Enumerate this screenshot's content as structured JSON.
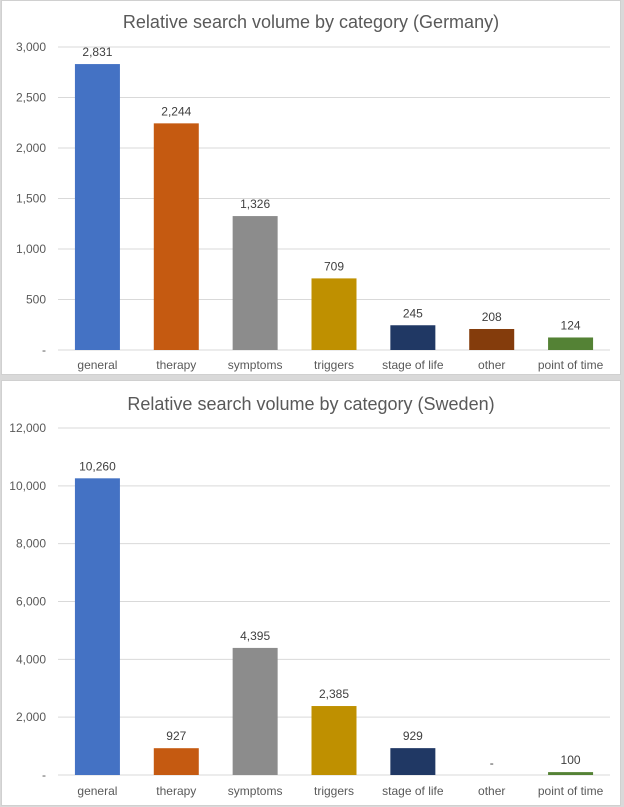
{
  "colors": {
    "general": "#4472c4",
    "therapy": "#c55a11",
    "symptoms": "#8c8c8c",
    "triggers": "#bf9000",
    "stage_of_life": "#203864",
    "other": "#843c0c",
    "point_of_time": "#548235",
    "gridline": "#d9d9d9",
    "axis_text": "#595959",
    "label_text": "#404040"
  },
  "chart_data": [
    {
      "type": "bar",
      "title": "Relative search volume by category (Germany)",
      "categories": [
        "general",
        "therapy",
        "symptoms",
        "triggers",
        "stage of life",
        "other",
        "point of time"
      ],
      "values": [
        2831,
        2244,
        1326,
        709,
        245,
        208,
        124
      ],
      "value_labels": [
        "2,831",
        "2,244",
        "1,326",
        "709",
        "245",
        "208",
        "124"
      ],
      "yticks": [
        "-",
        "500",
        "1,000",
        "1,500",
        "2,000",
        "2,500",
        "3,000"
      ],
      "ylim": [
        0,
        3000
      ],
      "grid": true,
      "legend": "none"
    },
    {
      "type": "bar",
      "title": "Relative search volume by category (Sweden)",
      "categories": [
        "general",
        "therapy",
        "symptoms",
        "triggers",
        "stage of life",
        "other",
        "point of time"
      ],
      "values": [
        10260,
        927,
        4395,
        2385,
        929,
        0,
        100
      ],
      "value_labels": [
        "10,260",
        "927",
        "4,395",
        "2,385",
        "929",
        "-",
        "100"
      ],
      "yticks": [
        "-",
        "2,000",
        "4,000",
        "6,000",
        "8,000",
        "10,000",
        "12,000"
      ],
      "ylim": [
        0,
        12000
      ],
      "grid": true,
      "legend": "none"
    }
  ]
}
